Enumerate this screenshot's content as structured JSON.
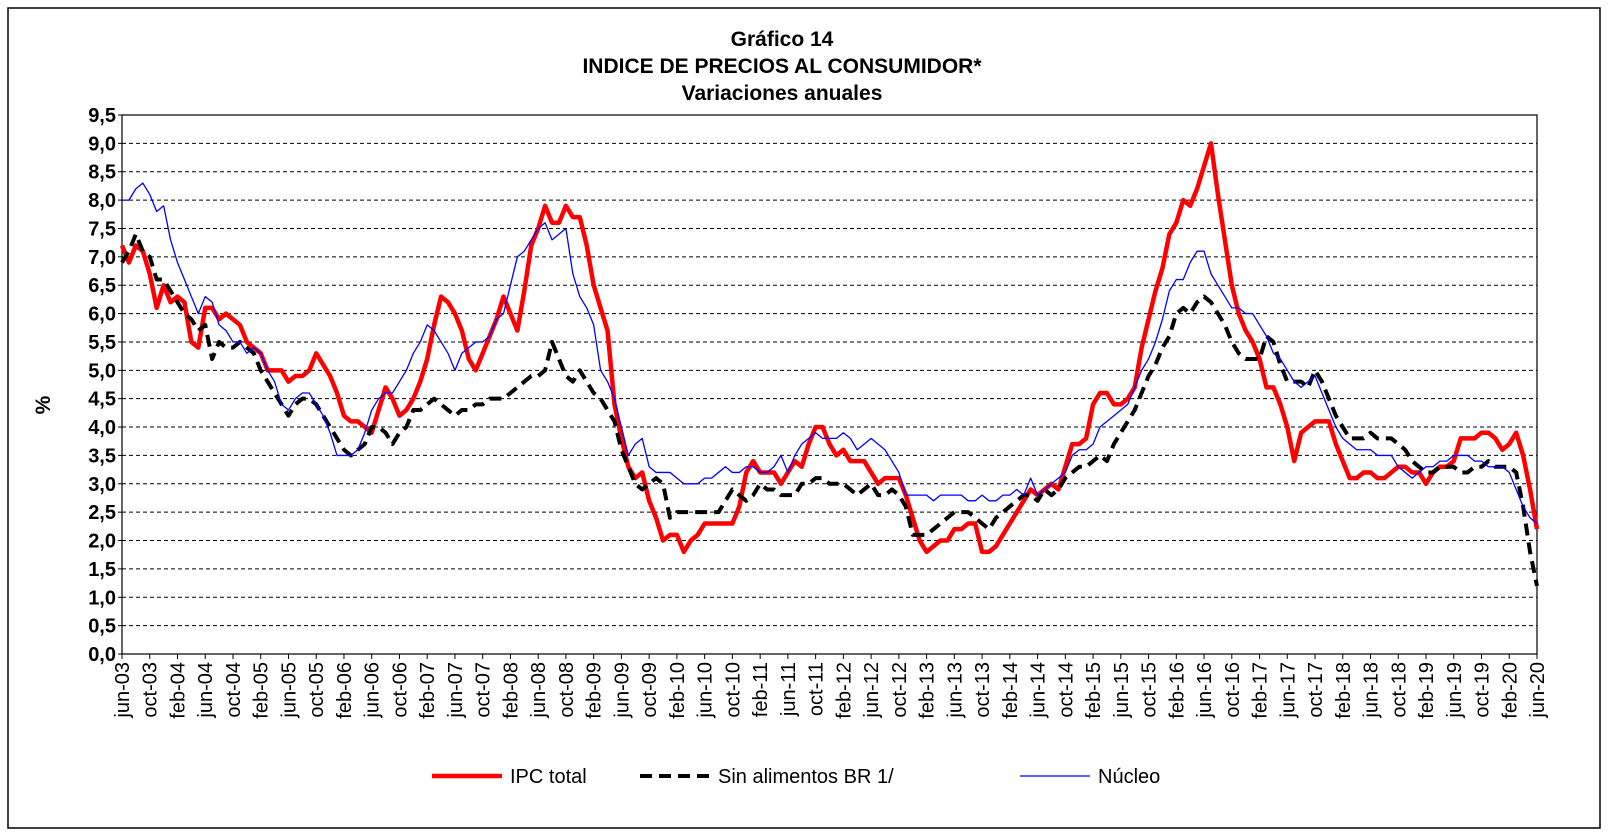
{
  "chart_data": {
    "type": "line",
    "title": "Gráfico 14",
    "subtitle": "INDICE DE PRECIOS AL CONSUMIDOR*",
    "subtitle2": "Variaciones anuales",
    "y_label": "%",
    "grid": true,
    "legend": "bottom",
    "ylim": [
      0,
      9.5
    ],
    "yticks": [
      {
        "value": 0,
        "label": "0,0"
      },
      {
        "value": 0.5,
        "label": "0,5"
      },
      {
        "value": 1,
        "label": "1,0"
      },
      {
        "value": 1.5,
        "label": "1,5"
      },
      {
        "value": 2,
        "label": "2,0"
      },
      {
        "value": 2.5,
        "label": "2,5"
      },
      {
        "value": 3,
        "label": "3,0"
      },
      {
        "value": 3.5,
        "label": "3,5"
      },
      {
        "value": 4,
        "label": "4,0"
      },
      {
        "value": 4.5,
        "label": "4,5"
      },
      {
        "value": 5,
        "label": "5,0"
      },
      {
        "value": 5.5,
        "label": "5,5"
      },
      {
        "value": 6,
        "label": "6,0"
      },
      {
        "value": 6.5,
        "label": "6,5"
      },
      {
        "value": 7,
        "label": "7,0"
      },
      {
        "value": 7.5,
        "label": "7,5"
      },
      {
        "value": 8,
        "label": "8,0"
      },
      {
        "value": 8.5,
        "label": "8,5"
      },
      {
        "value": 9,
        "label": "9,0"
      },
      {
        "value": 9.5,
        "label": "9,5"
      }
    ],
    "categories": [
      "jun-03",
      null,
      null,
      null,
      "oct-03",
      null,
      null,
      null,
      "feb-04",
      null,
      null,
      null,
      "jun-04",
      null,
      null,
      null,
      "oct-04",
      null,
      null,
      null,
      "feb-05",
      null,
      null,
      null,
      "jun-05",
      null,
      null,
      null,
      "oct-05",
      null,
      null,
      null,
      "feb-06",
      null,
      null,
      null,
      "jun-06",
      null,
      null,
      null,
      "oct-06",
      null,
      null,
      null,
      "feb-07",
      null,
      null,
      null,
      "jun-07",
      null,
      null,
      null,
      "oct-07",
      null,
      null,
      null,
      "feb-08",
      null,
      null,
      null,
      "jun-08",
      null,
      null,
      null,
      "oct-08",
      null,
      null,
      null,
      "feb-09",
      null,
      null,
      null,
      "jun-09",
      null,
      null,
      null,
      "oct-09",
      null,
      null,
      null,
      "feb-10",
      null,
      null,
      null,
      "jun-10",
      null,
      null,
      null,
      "oct-10",
      null,
      null,
      null,
      "feb-11",
      null,
      null,
      null,
      "jun-11",
      null,
      null,
      null,
      "oct-11",
      null,
      null,
      null,
      "feb-12",
      null,
      null,
      null,
      "jun-12",
      null,
      null,
      null,
      "oct-12",
      null,
      null,
      null,
      "feb-13",
      null,
      null,
      null,
      "jun-13",
      null,
      null,
      null,
      "oct-13",
      null,
      null,
      null,
      "feb-14",
      null,
      null,
      null,
      "jun-14",
      null,
      null,
      null,
      "oct-14",
      null,
      null,
      null,
      "feb-15",
      null,
      null,
      null,
      "jun-15",
      null,
      null,
      null,
      "oct-15",
      null,
      null,
      null,
      "feb-16",
      null,
      null,
      null,
      "jun-16",
      null,
      null,
      null,
      "oct-16",
      null,
      null,
      null,
      "feb-17",
      null,
      null,
      null,
      "jun-17",
      null,
      null,
      null,
      "oct-17",
      null,
      null,
      null,
      "feb-18",
      null,
      null,
      null,
      "jun-18",
      null,
      null,
      null,
      "oct-18",
      null,
      null,
      null,
      "feb-19",
      null,
      null,
      null,
      "jun-19",
      null,
      null,
      null,
      "oct-19",
      null,
      null,
      null,
      "feb-20",
      null,
      null,
      null,
      "jun-20"
    ],
    "series": [
      {
        "name": "IPC total",
        "color": "#ff0000",
        "style": "solid",
        "width": 4.5,
        "values": [
          7.2,
          6.9,
          7.2,
          7.1,
          6.7,
          6.1,
          6.5,
          6.2,
          6.3,
          6.2,
          5.5,
          5.4,
          6.1,
          6.1,
          5.9,
          6.0,
          5.9,
          5.8,
          5.5,
          5.4,
          5.3,
          5.0,
          5.0,
          5.0,
          4.8,
          4.9,
          4.9,
          5.0,
          5.3,
          5.1,
          4.9,
          4.6,
          4.2,
          4.1,
          4.1,
          4.0,
          3.9,
          4.3,
          4.7,
          4.5,
          4.2,
          4.3,
          4.5,
          4.8,
          5.2,
          5.8,
          6.3,
          6.2,
          6.0,
          5.7,
          5.2,
          5.0,
          5.3,
          5.6,
          5.9,
          6.3,
          6.0,
          5.7,
          6.4,
          7.2,
          7.5,
          7.9,
          7.6,
          7.6,
          7.9,
          7.7,
          7.7,
          7.2,
          6.5,
          6.1,
          5.7,
          4.4,
          3.8,
          3.3,
          3.1,
          3.2,
          2.7,
          2.4,
          2.0,
          2.1,
          2.1,
          1.8,
          2.0,
          2.1,
          2.3,
          2.3,
          2.3,
          2.3,
          2.3,
          2.6,
          3.2,
          3.4,
          3.2,
          3.2,
          3.2,
          3.0,
          3.2,
          3.4,
          3.3,
          3.7,
          4.0,
          4.0,
          3.7,
          3.5,
          3.6,
          3.4,
          3.4,
          3.4,
          3.2,
          3.0,
          3.1,
          3.1,
          3.1,
          2.8,
          2.4,
          2.0,
          1.8,
          1.9,
          2.0,
          2.0,
          2.2,
          2.2,
          2.3,
          2.3,
          1.8,
          1.8,
          1.9,
          2.1,
          2.3,
          2.5,
          2.7,
          2.9,
          2.8,
          2.9,
          3.0,
          2.9,
          3.3,
          3.7,
          3.7,
          3.8,
          4.4,
          4.6,
          4.6,
          4.4,
          4.4,
          4.5,
          4.7,
          5.4,
          5.9,
          6.4,
          6.8,
          7.4,
          7.6,
          8.0,
          7.9,
          8.2,
          8.6,
          9.0,
          8.1,
          7.3,
          6.5,
          6.0,
          5.7,
          5.5,
          5.2,
          4.7,
          4.7,
          4.4,
          4.0,
          3.4,
          3.9,
          4.0,
          4.1,
          4.1,
          4.1,
          3.7,
          3.4,
          3.1,
          3.1,
          3.2,
          3.2,
          3.1,
          3.1,
          3.2,
          3.3,
          3.3,
          3.2,
          3.2,
          3.0,
          3.2,
          3.3,
          3.3,
          3.4,
          3.8,
          3.8,
          3.8,
          3.9,
          3.9,
          3.8,
          3.6,
          3.7,
          3.9,
          3.5,
          2.9,
          2.2
        ]
      },
      {
        "name": "Sin alimentos BR  1/",
        "color": "#000000",
        "style": "dashed",
        "width": 4,
        "values": [
          6.9,
          7.1,
          7.4,
          7.1,
          7.0,
          6.6,
          6.6,
          6.4,
          6.2,
          6.0,
          5.9,
          5.7,
          5.8,
          5.2,
          5.5,
          5.4,
          5.4,
          5.5,
          5.4,
          5.3,
          5.0,
          4.8,
          4.6,
          4.4,
          4.2,
          4.4,
          4.5,
          4.5,
          4.4,
          4.2,
          4.0,
          3.8,
          3.6,
          3.5,
          3.6,
          3.7,
          4.0,
          4.0,
          3.9,
          3.7,
          3.9,
          4.0,
          4.3,
          4.3,
          4.4,
          4.5,
          4.4,
          4.3,
          4.2,
          4.3,
          4.3,
          4.4,
          4.4,
          4.5,
          4.5,
          4.5,
          4.6,
          4.7,
          4.8,
          4.9,
          4.9,
          5.0,
          5.5,
          5.2,
          4.9,
          4.8,
          5.0,
          4.8,
          4.6,
          4.5,
          4.3,
          4.1,
          3.6,
          3.3,
          3.0,
          2.9,
          3.0,
          3.1,
          3.0,
          2.4,
          2.5,
          2.5,
          2.5,
          2.5,
          2.5,
          2.5,
          2.5,
          2.7,
          2.9,
          2.8,
          2.7,
          2.8,
          3.0,
          2.9,
          2.9,
          2.8,
          2.8,
          2.8,
          3.0,
          3.0,
          3.1,
          3.1,
          3.0,
          3.0,
          3.0,
          2.9,
          2.8,
          2.9,
          3.0,
          2.8,
          2.8,
          2.9,
          2.8,
          2.6,
          2.1,
          2.1,
          2.1,
          2.2,
          2.3,
          2.4,
          2.5,
          2.5,
          2.5,
          2.4,
          2.3,
          2.2,
          2.4,
          2.5,
          2.6,
          2.7,
          2.8,
          2.8,
          2.7,
          2.9,
          2.8,
          2.9,
          3.1,
          3.2,
          3.3,
          3.3,
          3.4,
          3.5,
          3.4,
          3.7,
          3.9,
          4.1,
          4.3,
          4.6,
          4.9,
          5.1,
          5.4,
          5.6,
          6.0,
          6.1,
          6.0,
          6.2,
          6.3,
          6.2,
          6.0,
          5.8,
          5.5,
          5.3,
          5.2,
          5.2,
          5.2,
          5.6,
          5.5,
          5.1,
          4.8,
          4.8,
          4.8,
          4.7,
          5.0,
          4.8,
          4.5,
          4.2,
          4.0,
          3.8,
          3.8,
          3.8,
          3.9,
          3.8,
          3.8,
          3.8,
          3.7,
          3.6,
          3.4,
          3.3,
          3.2,
          3.2,
          3.3,
          3.3,
          3.3,
          3.2,
          3.2,
          3.3,
          3.3,
          3.4,
          3.3,
          3.3,
          3.3,
          3.2,
          2.6,
          1.8,
          1.2
        ]
      },
      {
        "name": "Núcleo",
        "color": "#0000ff",
        "style": "solid",
        "width": 1.3,
        "values": [
          8.0,
          8.0,
          8.2,
          8.3,
          8.1,
          7.8,
          7.9,
          7.3,
          6.9,
          6.6,
          6.3,
          6.0,
          6.3,
          6.2,
          5.8,
          5.7,
          5.5,
          5.5,
          5.3,
          5.4,
          5.3,
          5.0,
          4.8,
          4.4,
          4.3,
          4.5,
          4.6,
          4.6,
          4.4,
          4.2,
          3.9,
          3.5,
          3.5,
          3.5,
          3.6,
          3.9,
          4.3,
          4.5,
          4.6,
          4.6,
          4.8,
          5.0,
          5.3,
          5.5,
          5.8,
          5.7,
          5.5,
          5.3,
          5.0,
          5.3,
          5.4,
          5.5,
          5.5,
          5.6,
          5.9,
          6.0,
          6.5,
          7.0,
          7.1,
          7.3,
          7.5,
          7.6,
          7.3,
          7.4,
          7.5,
          6.7,
          6.3,
          6.1,
          5.8,
          5.0,
          4.8,
          4.5,
          4.0,
          3.5,
          3.7,
          3.8,
          3.3,
          3.2,
          3.2,
          3.2,
          3.1,
          3.0,
          3.0,
          3.0,
          3.1,
          3.1,
          3.2,
          3.3,
          3.2,
          3.2,
          3.3,
          3.3,
          3.2,
          3.2,
          3.3,
          3.5,
          3.2,
          3.5,
          3.7,
          3.8,
          3.9,
          3.8,
          3.8,
          3.8,
          3.9,
          3.8,
          3.6,
          3.7,
          3.8,
          3.7,
          3.6,
          3.4,
          3.2,
          2.8,
          2.8,
          2.8,
          2.8,
          2.7,
          2.8,
          2.8,
          2.8,
          2.8,
          2.7,
          2.7,
          2.8,
          2.7,
          2.7,
          2.8,
          2.8,
          2.9,
          2.8,
          3.1,
          2.8,
          2.9,
          3.0,
          3.1,
          3.2,
          3.5,
          3.6,
          3.6,
          3.7,
          4.0,
          4.1,
          4.2,
          4.3,
          4.4,
          4.7,
          5.0,
          5.2,
          5.5,
          5.9,
          6.4,
          6.6,
          6.6,
          6.9,
          7.1,
          7.1,
          6.7,
          6.5,
          6.3,
          6.1,
          6.1,
          6.0,
          6.0,
          5.8,
          5.6,
          5.3,
          5.2,
          5.0,
          4.8,
          4.7,
          4.8,
          4.9,
          4.6,
          4.3,
          4.0,
          3.8,
          3.7,
          3.6,
          3.6,
          3.6,
          3.5,
          3.5,
          3.5,
          3.3,
          3.2,
          3.1,
          3.2,
          3.3,
          3.3,
          3.4,
          3.4,
          3.5,
          3.5,
          3.5,
          3.4,
          3.4,
          3.3,
          3.3,
          3.3,
          3.2,
          2.9,
          2.6,
          2.4,
          2.3
        ]
      }
    ]
  }
}
